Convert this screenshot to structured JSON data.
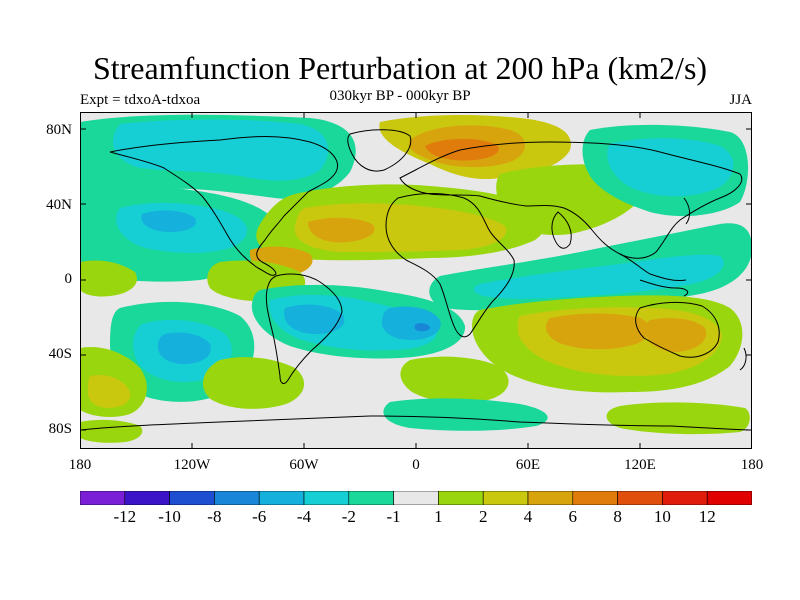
{
  "title": "Streamfunction Perturbation at 200 hPa (km2/s)",
  "left_subtitle": "Expt = tdxoA-tdxoa",
  "center_subtitle": "030kyr BP - 000kyr BP",
  "right_subtitle": "JJA",
  "lat_labels": [
    "80N",
    "40N",
    "0",
    "40S",
    "80S"
  ],
  "lon_labels": [
    "180",
    "120W",
    "60W",
    "0",
    "60E",
    "120E",
    "180"
  ],
  "colorbar": {
    "labels": [
      "-12",
      "-10",
      "-8",
      "-6",
      "-4",
      "-2",
      "-1",
      "1",
      "2",
      "4",
      "6",
      "8",
      "10",
      "12"
    ],
    "colors": [
      "#7a1fd6",
      "#3b14c8",
      "#1e4fd0",
      "#1a86d8",
      "#15b0dc",
      "#16cfd4",
      "#1ad79a",
      "#e8e8e8",
      "#9ad60e",
      "#c9c80e",
      "#d8a40e",
      "#e07c0c",
      "#e0500c",
      "#e01c0c",
      "#e00000"
    ]
  },
  "map_colors": {
    "neutral": "#e8e8e8",
    "land_line": "#000000"
  }
}
